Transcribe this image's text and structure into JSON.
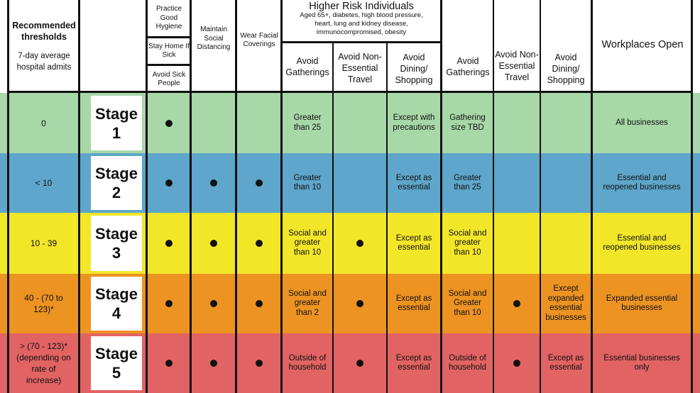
{
  "colors": {
    "stage1": "#a8d8a8",
    "stage2": "#5ea6cb",
    "stage3": "#f2e629",
    "stage4": "#ec9322",
    "stage5": "#e26363",
    "rule": "#111111"
  },
  "header": {
    "thresholds_title": "Recommended thresholds",
    "thresholds_sub": "7-day average hospital admits",
    "practice_hygiene": "Practice Good Hygiene",
    "stay_home": "Stay Home If Sick",
    "avoid_sick": "Avoid Sick People",
    "maintain_distancing": "Maintain Social Distancing",
    "wear_coverings": "Wear Facial Coverings",
    "higher_risk_title": "Higher Risk Individuals",
    "higher_risk_desc": "Aged 65+, diabetes, high blood pressure, heart, lung and kidney disease, immunocompromised, obesity",
    "hr_avoid_gatherings": "Avoid Gatherings",
    "hr_avoid_travel": "Avoid Non-Essential Travel",
    "hr_avoid_dining": "Avoid Dining/ Shopping",
    "avoid_gatherings": "Avoid Gatherings",
    "avoid_travel": "Avoid Non-Essential Travel",
    "avoid_dining": "Avoid Dining/ Shopping",
    "workplaces_open": "Workplaces Open"
  },
  "stages": [
    {
      "threshold": "0",
      "label_a": "Stage",
      "label_b": "1",
      "color_key": "stage1",
      "hygiene": true,
      "distancing": false,
      "coverings": false,
      "hr_gatherings": "Greater than 25",
      "hr_travel": false,
      "hr_dining": "Except with precautions",
      "gatherings": "Gathering size TBD",
      "travel": false,
      "dining": "",
      "workplaces": "All businesses"
    },
    {
      "threshold": "< 10",
      "label_a": "Stage",
      "label_b": "2",
      "color_key": "stage2",
      "hygiene": true,
      "distancing": true,
      "coverings": true,
      "hr_gatherings": "Greater than 10",
      "hr_travel": false,
      "hr_dining": "Except as essential",
      "gatherings": "Greater than 25",
      "travel": false,
      "dining": "",
      "workplaces": "Essential and reopened businesses"
    },
    {
      "threshold": "10 - 39",
      "label_a": "Stage",
      "label_b": "3",
      "color_key": "stage3",
      "hygiene": true,
      "distancing": true,
      "coverings": true,
      "hr_gatherings": "Social and greater than 10",
      "hr_travel": true,
      "hr_dining": "Except as essential",
      "gatherings": "Social and greater than 10",
      "travel": false,
      "dining": "",
      "workplaces": "Essential and reopened businesses"
    },
    {
      "threshold": "40 - (70 to 123)*",
      "label_a": "Stage",
      "label_b": "4",
      "color_key": "stage4",
      "hygiene": true,
      "distancing": true,
      "coverings": true,
      "hr_gatherings": "Social and greater than 2",
      "hr_travel": true,
      "hr_dining": "Except as essential",
      "gatherings": "Social and Greater than 10",
      "travel": true,
      "dining": "Except expanded essential businesses",
      "workplaces": "Expanded essential businesses"
    },
    {
      "threshold": "> (70 - 123)* (depending on rate of increase)",
      "label_a": "Stage",
      "label_b": "5",
      "color_key": "stage5",
      "hygiene": true,
      "distancing": true,
      "coverings": true,
      "hr_gatherings": "Outside of household",
      "hr_travel": true,
      "hr_dining": "Except as essential",
      "gatherings": "Outside of household",
      "travel": true,
      "dining": "Except as essential",
      "workplaces": "Essential businesses only"
    }
  ]
}
